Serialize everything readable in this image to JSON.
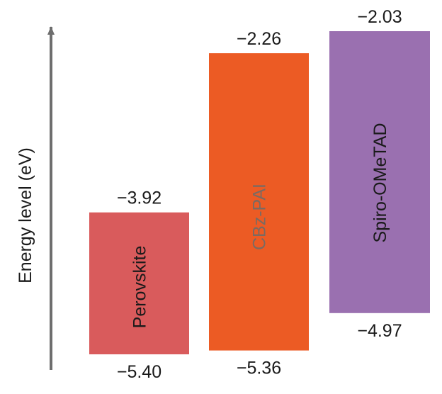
{
  "chart_data": {
    "type": "bar",
    "ylabel": "Energy level (eV)",
    "ylim": [
      -5.6,
      -1.8
    ],
    "grid": false,
    "categories": [
      "Perovskite",
      "CBz-PAI",
      "Spiro-OMeTAD"
    ],
    "series": [
      {
        "values": [
          {
            "label": "Perovskite",
            "top": -3.92,
            "bottom": -5.4,
            "top_label": "−3.92",
            "bottom_label": "−5.40",
            "color": "#d95b5c",
            "text_color": "#1a1a1a"
          },
          {
            "label": "CBz-PAI",
            "top": -2.26,
            "bottom": -5.36,
            "top_label": "−2.26",
            "bottom_label": "−5.36",
            "color": "#ec5b24",
            "text_color": "#7a6a62"
          },
          {
            "label": "Spiro-OMeTAD",
            "top": -2.03,
            "bottom": -4.97,
            "top_label": "−2.03",
            "bottom_label": "−4.97",
            "color": "#9a70b0",
            "text_color": "#1a1a1a"
          }
        ]
      }
    ],
    "colors": {
      "axis": "#6e6e6e"
    }
  }
}
